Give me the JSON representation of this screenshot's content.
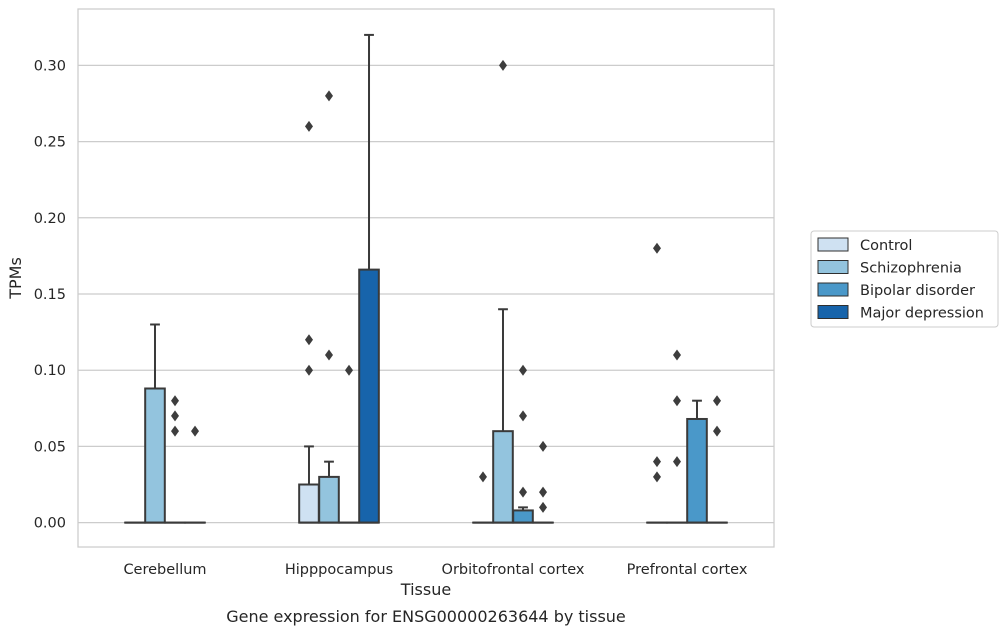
{
  "chart_data": {
    "type": "box",
    "xlabel": "Tissue",
    "ylabel": "TPMs",
    "caption": "Gene expression for ENSG00000263644 by tissue",
    "ylim": [
      -0.016,
      0.337
    ],
    "yticks": [
      0.0,
      0.05,
      0.1,
      0.15,
      0.2,
      0.25,
      0.3
    ],
    "ytick_labels": [
      "0.00",
      "0.05",
      "0.10",
      "0.15",
      "0.20",
      "0.25",
      "0.30"
    ],
    "grid": "horizontal",
    "legend_position": "right",
    "categories": [
      "Cerebellum",
      "Hipppocampus",
      "Orbitofrontal cortex",
      "Prefrontal cortex"
    ],
    "series": [
      {
        "name": "Control",
        "color": "#cfe1f2",
        "boxes": [
          {
            "q1": 0,
            "median": 0,
            "q3": 0,
            "whisker_low": 0,
            "whisker_high": 0,
            "outliers": []
          },
          {
            "q1": 0,
            "median": 0,
            "q3": 0.025,
            "whisker_low": 0,
            "whisker_high": 0.05,
            "outliers": [
              0.1,
              0.12,
              0.26
            ]
          },
          {
            "q1": 0,
            "median": 0,
            "q3": 0,
            "whisker_low": 0,
            "whisker_high": 0,
            "outliers": [
              0.03
            ]
          },
          {
            "q1": 0,
            "median": 0,
            "q3": 0,
            "whisker_low": 0,
            "whisker_high": 0,
            "outliers": [
              0.03,
              0.04,
              0.18
            ]
          }
        ]
      },
      {
        "name": "Schizophrenia",
        "color": "#93c4de",
        "boxes": [
          {
            "q1": 0,
            "median": 0,
            "q3": 0.088,
            "whisker_low": 0,
            "whisker_high": 0.13,
            "outliers": []
          },
          {
            "q1": 0,
            "median": 0,
            "q3": 0.03,
            "whisker_low": 0,
            "whisker_high": 0.04,
            "outliers": [
              0.11,
              0.28
            ]
          },
          {
            "q1": 0,
            "median": 0,
            "q3": 0.06,
            "whisker_low": 0,
            "whisker_high": 0.14,
            "outliers": [
              0.3
            ]
          },
          {
            "q1": 0,
            "median": 0,
            "q3": 0,
            "whisker_low": 0,
            "whisker_high": 0,
            "outliers": [
              0.04,
              0.08,
              0.11
            ]
          }
        ]
      },
      {
        "name": "Bipolar disorder",
        "color": "#4a98c9",
        "boxes": [
          {
            "q1": 0,
            "median": 0,
            "q3": 0,
            "whisker_low": 0,
            "whisker_high": 0,
            "outliers": [
              0.06,
              0.07,
              0.08
            ]
          },
          {
            "q1": 0,
            "median": 0,
            "q3": 0,
            "whisker_low": 0,
            "whisker_high": 0,
            "outliers": [
              0.1
            ]
          },
          {
            "q1": 0,
            "median": 0,
            "q3": 0.008,
            "whisker_low": 0,
            "whisker_high": 0.01,
            "outliers": [
              0.02,
              0.07,
              0.1
            ]
          },
          {
            "q1": 0,
            "median": 0,
            "q3": 0.068,
            "whisker_low": 0,
            "whisker_high": 0.08,
            "outliers": []
          }
        ]
      },
      {
        "name": "Major depression",
        "color": "#1764ab",
        "boxes": [
          {
            "q1": 0,
            "median": 0,
            "q3": 0,
            "whisker_low": 0,
            "whisker_high": 0,
            "outliers": [
              0.06
            ]
          },
          {
            "q1": 0,
            "median": 0,
            "q3": 0.166,
            "whisker_low": 0,
            "whisker_high": 0.32,
            "outliers": []
          },
          {
            "q1": 0,
            "median": 0,
            "q3": 0,
            "whisker_low": 0,
            "whisker_high": 0,
            "outliers": [
              0.01,
              0.02,
              0.05
            ]
          },
          {
            "q1": 0,
            "median": 0,
            "q3": 0,
            "whisker_low": 0,
            "whisker_high": 0,
            "outliers": [
              0.06,
              0.08
            ]
          }
        ]
      }
    ]
  }
}
